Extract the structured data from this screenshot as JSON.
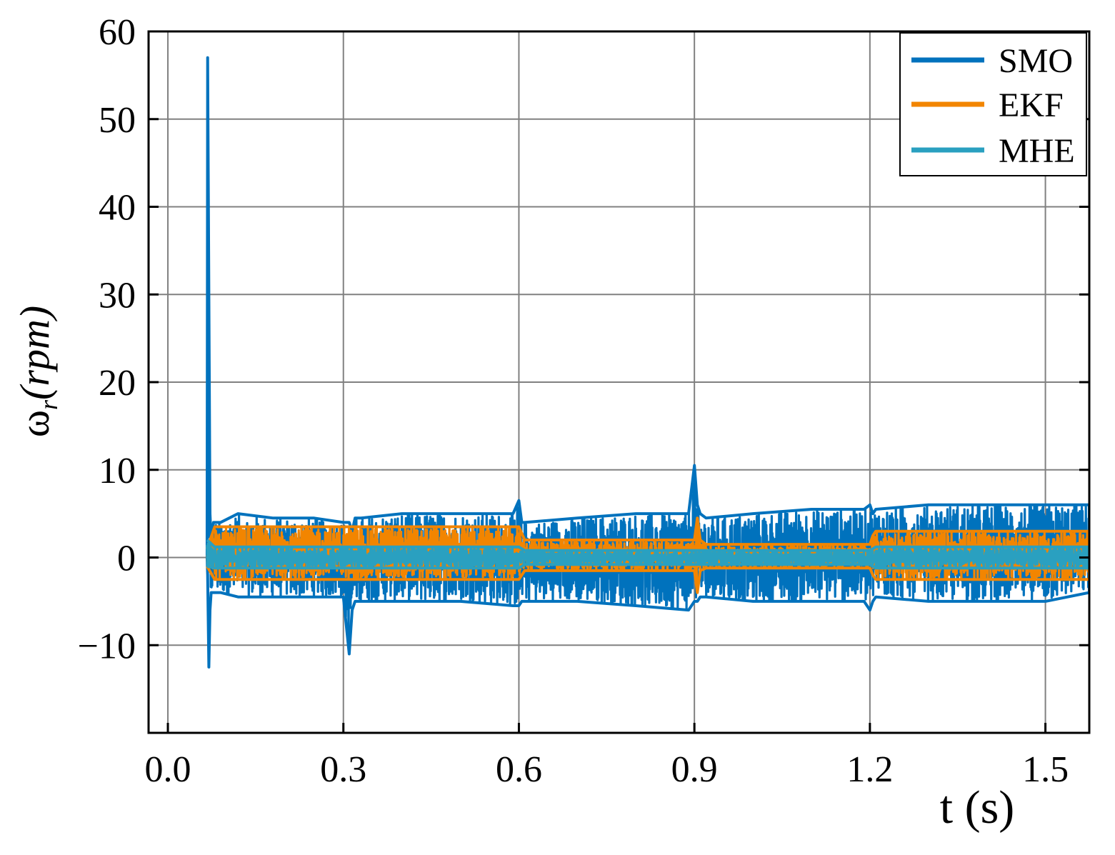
{
  "chart_data": {
    "type": "line",
    "title": "",
    "xlabel": "t (s)",
    "ylabel_main": "ω",
    "ylabel_sub": "r",
    "ylabel_unit": "(rpm)",
    "xlim": [
      -0.033,
      1.575
    ],
    "ylim": [
      -20,
      60
    ],
    "xticks": [
      0.0,
      0.3,
      0.6,
      0.9,
      1.2,
      1.5
    ],
    "xtick_labels": [
      "0.0",
      "0.3",
      "0.6",
      "0.9",
      "1.2",
      "1.5"
    ],
    "yticks": [
      -10,
      0,
      10,
      20,
      30,
      40,
      50,
      60
    ],
    "ytick_labels": [
      "−10",
      "0",
      "10",
      "20",
      "30",
      "40",
      "50",
      "60"
    ],
    "grid": true,
    "legend_position": "top-right",
    "series": [
      {
        "name": "SMO",
        "color": "#0072BD",
        "x": [
          0.067,
          0.068,
          0.07,
          0.072,
          0.074,
          0.078,
          0.09,
          0.12,
          0.18,
          0.25,
          0.3,
          0.31,
          0.315,
          0.32,
          0.33,
          0.4,
          0.5,
          0.59,
          0.6,
          0.605,
          0.61,
          0.7,
          0.8,
          0.89,
          0.9,
          0.905,
          0.91,
          0.92,
          1.0,
          1.1,
          1.19,
          1.2,
          1.205,
          1.21,
          1.3,
          1.4,
          1.5,
          1.575
        ],
        "y_upper": [
          0,
          57,
          30,
          5,
          2,
          4,
          4,
          5,
          4.5,
          4.5,
          4,
          4,
          3,
          4.5,
          4.5,
          5,
          5,
          5,
          6.5,
          4,
          4,
          4.5,
          5,
          5,
          10.5,
          6,
          5,
          4.5,
          5,
          5.5,
          5.5,
          6,
          5,
          5.5,
          6,
          6,
          6,
          6
        ],
        "y_lower": [
          0,
          -2,
          -12.5,
          -6,
          -4,
          -4,
          -4,
          -4.5,
          -4.5,
          -4.5,
          -4.5,
          -11,
          -6,
          -5,
          -5,
          -5,
          -5,
          -5.5,
          -5.5,
          -5,
          -5,
          -5,
          -5.5,
          -6,
          -5,
          -5,
          -4.5,
          -4.5,
          -5,
          -5,
          -5,
          -6,
          -5,
          -4.5,
          -5,
          -5,
          -5,
          -4
        ]
      },
      {
        "name": "EKF",
        "color": "#F28500",
        "x": [
          0.067,
          0.08,
          0.2,
          0.3,
          0.45,
          0.6,
          0.61,
          0.75,
          0.9,
          0.905,
          0.91,
          0.92,
          1.05,
          1.2,
          1.205,
          1.21,
          1.35,
          1.5,
          1.575
        ],
        "y_upper": [
          1,
          3.5,
          3.5,
          3.5,
          3.5,
          3.5,
          2,
          2,
          2,
          4.5,
          2,
          1.5,
          1.5,
          1.5,
          2.5,
          3,
          3,
          3,
          3
        ],
        "y_lower": [
          -1,
          -2.5,
          -2.5,
          -2.5,
          -2.5,
          -2.5,
          -1.5,
          -1.5,
          -1.5,
          -4,
          -1.5,
          -1.2,
          -1.2,
          -1.2,
          -2,
          -2.5,
          -2.5,
          -2.5,
          -2.5
        ]
      },
      {
        "name": "MHE",
        "color": "#2AA0C0",
        "x": [
          0.067,
          0.08,
          0.3,
          0.6,
          0.61,
          0.9,
          0.91,
          1.2,
          1.21,
          1.5,
          1.575
        ],
        "y_upper": [
          2,
          1.2,
          1.2,
          1.2,
          0.8,
          0.8,
          0.8,
          0.8,
          1.2,
          1.2,
          1.2
        ],
        "y_lower": [
          -1,
          -1.2,
          -1.2,
          -1.2,
          -0.8,
          -0.8,
          -0.8,
          -0.8,
          -1.2,
          -1.2,
          -1.2
        ]
      }
    ]
  }
}
